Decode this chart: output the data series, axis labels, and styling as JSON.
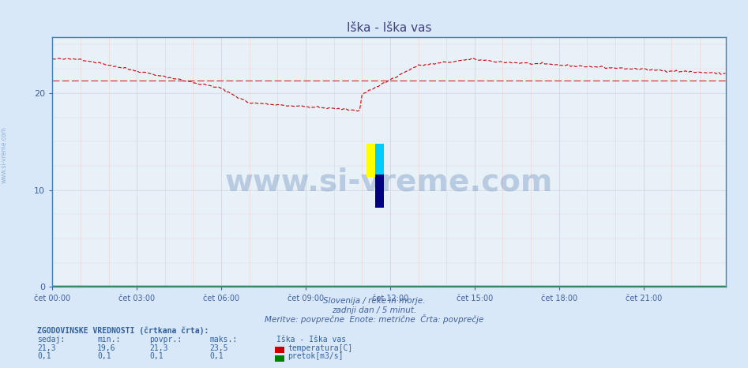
{
  "title": "Iška - Iška vas",
  "bg_color": "#d8e8f8",
  "plot_bg_color": "#e8f0f8",
  "grid_color_major": "#c8d8e8",
  "grid_color_minor": "#f0c0c0",
  "y_min": 0,
  "y_max": 25.8,
  "y_ticks": [
    0,
    10,
    20
  ],
  "x_tick_labels": [
    "čet 00:00",
    "čet 03:00",
    "čet 06:00",
    "čet 09:00",
    "čet 12:00",
    "čet 15:00",
    "čet 18:00",
    "čet 21:00"
  ],
  "xlabel_color": "#4060a0",
  "title_color": "#404080",
  "footer_line1": "Slovenija / reke in morje.",
  "footer_line2": "zadnji dan / 5 minut.",
  "footer_line3": "Meritve: povprečne  Enote: metrične  Črta: povprečje",
  "footer_color": "#4060a0",
  "watermark": "www.si-vreme.com",
  "watermark_color": "#3060a0",
  "temp_color": "#cc0000",
  "avg_color": "#cc0000",
  "flow_color": "#008000",
  "axis_color": "#4080c0",
  "bottom_text_color": "#3060a0",
  "legend_header": "ZGODOVINSKE VREDNOSTI (črtkana črta):",
  "legend_cols": [
    "sedaj:",
    "min.:",
    "povpr.:",
    "maks.:",
    "Iška - Iška vas"
  ],
  "temp_row": [
    "21,3",
    "19,6",
    "21,3",
    "23,5",
    "temperatura[C]"
  ],
  "flow_row": [
    "0,1",
    "0,1",
    "0,1",
    "0,1",
    "pretok[m3/s]"
  ],
  "temp_avg_value": 21.3,
  "flow_avg_value": 0.1,
  "n_points": 288
}
